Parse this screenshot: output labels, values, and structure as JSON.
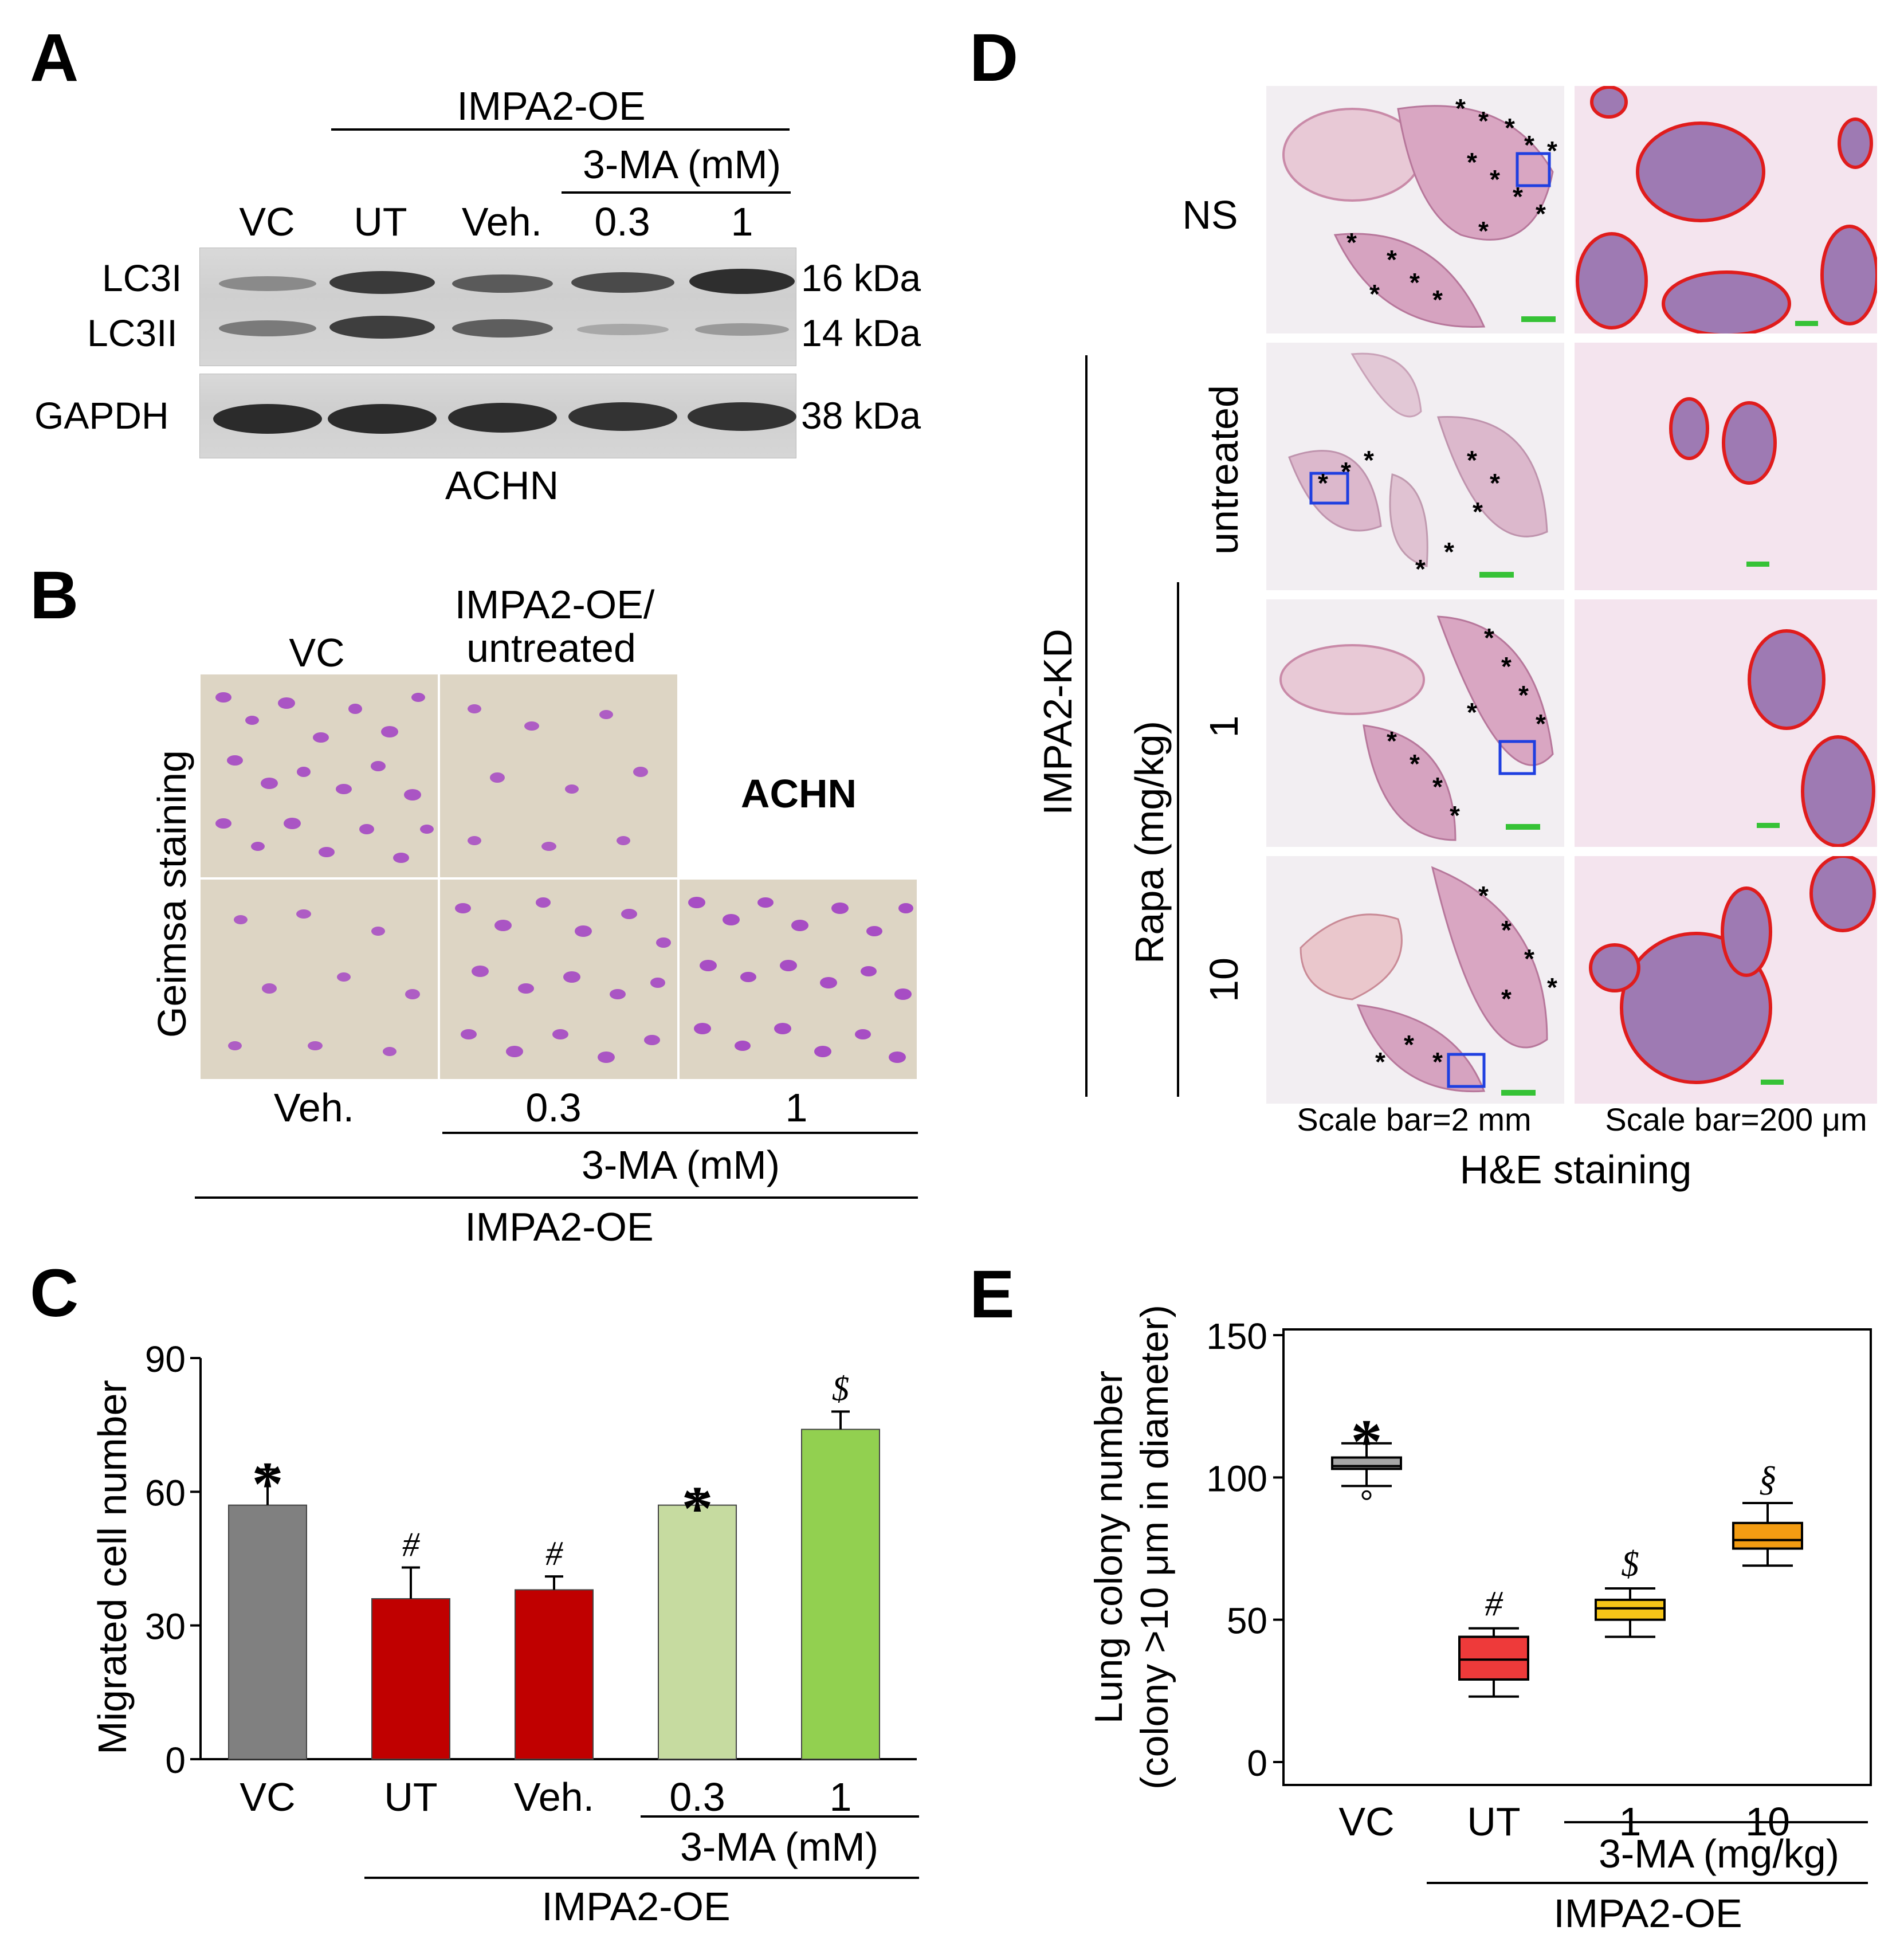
{
  "panels": {
    "a": "A",
    "b": "B",
    "c": "C",
    "d": "D",
    "e": "E"
  },
  "panel_a": {
    "header_group": "IMPA2-OE",
    "header_subgroup": "3-MA (mM)",
    "lanes": [
      "VC",
      "UT",
      "Veh.",
      "0.3",
      "1"
    ],
    "row_labels": [
      "LC3I",
      "LC3II",
      "GAPDH"
    ],
    "kda_labels": [
      "16 kDa",
      "14 kDa",
      "38 kDa"
    ],
    "cell_line": "ACHN"
  },
  "panel_b": {
    "col_top_1": "VC",
    "col_top_2_line1": "IMPA2-OE/",
    "col_top_2_line2": "untreated",
    "side_label": "Geimsa staining",
    "cell_line": "ACHN",
    "bottom_labels": [
      "Veh.",
      "0.3",
      "1"
    ],
    "bottom_group": "3-MA (mM)",
    "bottom_group2": "IMPA2-OE"
  },
  "panel_c": {
    "chart_data": {
      "type": "bar",
      "categories": [
        "VC",
        "UT",
        "Veh.",
        "0.3",
        "1"
      ],
      "values": [
        57,
        36,
        38,
        57,
        74
      ],
      "errors": [
        8,
        7,
        3,
        2.5,
        4
      ],
      "markers": [
        "*",
        "#",
        "#",
        "*",
        "$"
      ],
      "colors": [
        "#808080",
        "#c00000",
        "#c00000",
        "#c6dba0",
        "#92d050"
      ],
      "ylabel": "Migrated cell number",
      "ylim": [
        0,
        90
      ],
      "yticks": [
        0,
        30,
        60,
        90
      ],
      "group_label_1": "3-MA (mM)",
      "group_label_2": "IMPA2-OE"
    }
  },
  "panel_d": {
    "row_labels": [
      "NS",
      "untreated",
      "1",
      "10"
    ],
    "group_label": "IMPA2-KD",
    "subgroup_label": "Rapa (mg/kg)",
    "scale_left": "Scale bar=2 mm",
    "scale_right": "Scale bar=200 μm",
    "stain_label": "H&E staining"
  },
  "panel_e": {
    "chart_data": {
      "type": "box",
      "categories": [
        "VC",
        "UT",
        "1",
        "10"
      ],
      "boxes": [
        {
          "min": 97,
          "q1": 103,
          "median": 104,
          "q3": 107,
          "max": 112,
          "outliers": [
            97
          ],
          "marker": "*",
          "color": "#a6a6a6"
        },
        {
          "min": 23,
          "q1": 29,
          "median": 36,
          "q3": 44,
          "max": 47,
          "outliers": [],
          "marker": "#",
          "color": "#ee3a3a"
        },
        {
          "min": 44,
          "q1": 50,
          "median": 54,
          "q3": 57,
          "max": 61,
          "outliers": [],
          "marker": "$",
          "color": "#f5c518"
        },
        {
          "min": 69,
          "q1": 75,
          "median": 78,
          "q3": 84,
          "max": 91,
          "outliers": [],
          "marker": "§",
          "color": "#f39c12"
        }
      ],
      "ylabel_line1": "Lung colony number",
      "ylabel_line2": "(colony >10 μm in diameter)",
      "ylim": [
        0,
        150
      ],
      "yticks": [
        0,
        50,
        100,
        150
      ],
      "group_label_1": "3-MA (mg/kg)",
      "group_label_2": "IMPA2-OE"
    }
  }
}
